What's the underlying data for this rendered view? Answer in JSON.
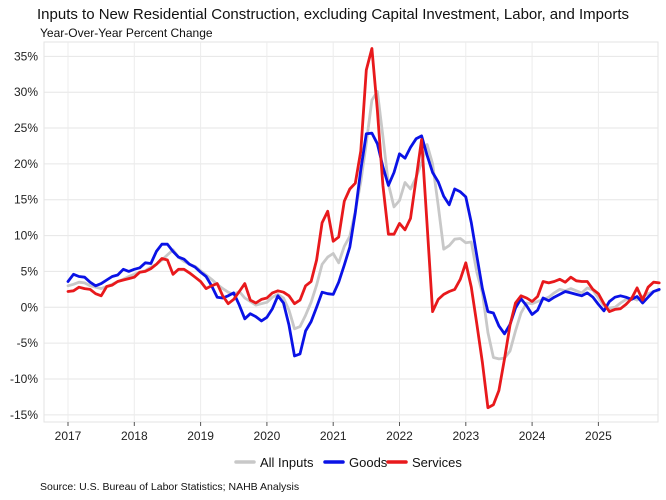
{
  "chart_data": {
    "type": "line",
    "title": "Inputs to New Residential Construction, excluding Capital Investment, Labor, and Imports",
    "subtitle": "Year-Over-Year Percent Change",
    "source": "Source: U.S. Bureau of Labor Statistics; NAHB Analysis",
    "x_ticks": [
      "2017",
      "2018",
      "2019",
      "2020",
      "2021",
      "2022",
      "2023",
      "2024",
      "2025"
    ],
    "y_ticks": [
      "-15%",
      "-10%",
      "-5%",
      "0%",
      "5%",
      "10%",
      "15%",
      "20%",
      "25%",
      "30%",
      "35%"
    ],
    "ylim": [
      -16,
      37
    ],
    "x_start": "2017-01",
    "grid": true,
    "legend_position": "bottom",
    "series": [
      {
        "name": "All Inputs",
        "color": "#c8c8c8",
        "values": [
          3.0,
          3.2,
          3.5,
          3.4,
          3.0,
          2.8,
          2.6,
          2.9,
          3.2,
          3.6,
          3.9,
          4.3,
          4.6,
          4.9,
          5.1,
          5.6,
          6.0,
          6.6,
          7.3,
          8.0,
          7.0,
          6.4,
          6.0,
          5.7,
          5.1,
          4.5,
          3.9,
          3.2,
          2.6,
          2.1,
          1.8,
          2.2,
          1.3,
          0.8,
          0.3,
          0.5,
          0.7,
          1.4,
          1.8,
          1.3,
          -0.4,
          -3.0,
          -2.7,
          -1.1,
          0.7,
          3.1,
          6.0,
          7.0,
          7.5,
          6.2,
          8.5,
          9.9,
          13.4,
          17.5,
          22.9,
          28.9,
          30.1,
          23.8,
          17.2,
          14.0,
          14.9,
          17.4,
          16.5,
          18.1,
          20.2,
          22.7,
          20.0,
          14.2,
          8.1,
          8.6,
          9.5,
          9.6,
          9.0,
          9.1,
          4.9,
          2.0,
          -3.5,
          -7.0,
          -7.2,
          -7.1,
          -6.1,
          -3.3,
          -0.8,
          0.6,
          0.5,
          0.8,
          1.1,
          1.4,
          2.0,
          2.5,
          2.3,
          2.6,
          2.3,
          2.0,
          2.7,
          2.4,
          1.3,
          0.2,
          -0.1,
          0.0,
          0.6,
          1.1,
          1.3,
          1.0,
          1.5,
          1.9,
          2.2,
          2.4
        ]
      },
      {
        "name": "Goods",
        "color": "#0a12e6",
        "values": [
          3.6,
          4.6,
          4.3,
          4.2,
          3.5,
          3.0,
          3.3,
          3.8,
          4.3,
          4.5,
          5.3,
          5.0,
          5.3,
          5.5,
          6.2,
          6.1,
          7.8,
          8.8,
          8.8,
          7.8,
          7.0,
          6.7,
          6.0,
          5.6,
          4.9,
          4.3,
          3.0,
          1.4,
          1.3,
          1.6,
          2.0,
          0.3,
          -1.6,
          -0.9,
          -1.3,
          -1.9,
          -1.4,
          -0.2,
          1.6,
          0.6,
          -2.5,
          -6.8,
          -6.5,
          -3.3,
          -2.0,
          0.0,
          2.1,
          1.9,
          1.8,
          3.5,
          5.9,
          8.4,
          13.2,
          19.2,
          24.2,
          24.3,
          22.8,
          19.6,
          17.0,
          18.8,
          21.4,
          20.8,
          22.3,
          23.5,
          23.9,
          21.2,
          18.8,
          17.5,
          15.5,
          14.3,
          16.5,
          16.1,
          15.4,
          11.8,
          7.2,
          2.6,
          -0.6,
          -0.8,
          -2.6,
          -3.7,
          -2.4,
          -0.1,
          1.2,
          0.2,
          -1.0,
          -0.4,
          1.3,
          0.9,
          1.4,
          1.8,
          2.2,
          2.0,
          1.8,
          1.6,
          2.0,
          1.4,
          0.4,
          -0.5,
          0.8,
          1.4,
          1.6,
          1.4,
          1.1,
          1.5,
          0.6,
          1.4,
          2.2,
          2.5
        ]
      },
      {
        "name": "Services",
        "color": "#e8191c",
        "values": [
          2.2,
          2.3,
          2.8,
          2.6,
          2.5,
          1.9,
          1.6,
          2.9,
          3.1,
          3.6,
          3.8,
          4.0,
          4.2,
          4.9,
          5.0,
          5.4,
          6.0,
          6.8,
          6.6,
          4.6,
          5.3,
          5.3,
          4.8,
          4.2,
          3.6,
          2.6,
          3.0,
          3.3,
          1.6,
          0.5,
          1.1,
          2.2,
          3.3,
          1.0,
          0.6,
          1.1,
          1.3,
          2.0,
          2.3,
          2.1,
          1.6,
          0.5,
          1.0,
          3.0,
          3.6,
          6.6,
          11.8,
          13.4,
          9.2,
          9.8,
          14.8,
          16.5,
          17.3,
          21.8,
          33.1,
          36.1,
          27.4,
          17.0,
          10.2,
          10.2,
          11.7,
          10.8,
          12.4,
          17.9,
          23.4,
          11.5,
          -0.6,
          1.1,
          1.8,
          2.2,
          2.5,
          3.9,
          6.2,
          2.8,
          -2.3,
          -7.7,
          -14.0,
          -13.6,
          -11.6,
          -7.2,
          -2.5,
          0.6,
          1.6,
          1.3,
          0.8,
          1.5,
          3.6,
          3.4,
          3.6,
          3.9,
          3.5,
          4.2,
          3.7,
          3.6,
          3.6,
          2.5,
          1.9,
          0.5,
          -0.6,
          -0.3,
          -0.2,
          0.4,
          1.2,
          2.7,
          1.0,
          2.8,
          3.5,
          3.4
        ]
      }
    ]
  }
}
